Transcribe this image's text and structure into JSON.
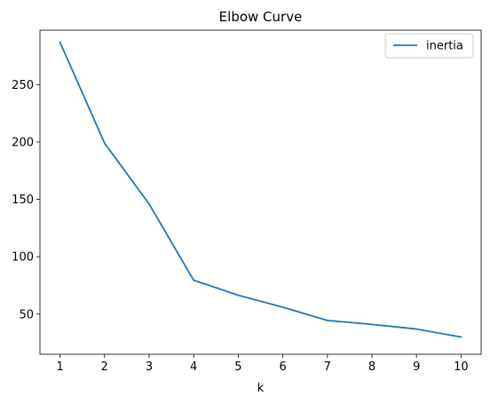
{
  "chart_data": {
    "type": "line",
    "title": "Elbow Curve",
    "xlabel": "k",
    "ylabel": "",
    "x": [
      1,
      2,
      3,
      4,
      5,
      6,
      7,
      8,
      9,
      10
    ],
    "series": [
      {
        "name": "inertia",
        "color": "#1f77b4",
        "values": [
          287,
          199,
          146,
          79.5,
          66.5,
          56,
          44.5,
          41,
          37,
          30
        ]
      }
    ],
    "xlim": [
      0.55,
      10.45
    ],
    "ylim": [
      15,
      297.5
    ],
    "xticks": [
      "1",
      "2",
      "3",
      "4",
      "5",
      "6",
      "7",
      "8",
      "9",
      "10"
    ],
    "yticks": [
      "50",
      "100",
      "150",
      "200",
      "250"
    ],
    "grid": false,
    "legend_position": "top-right"
  }
}
